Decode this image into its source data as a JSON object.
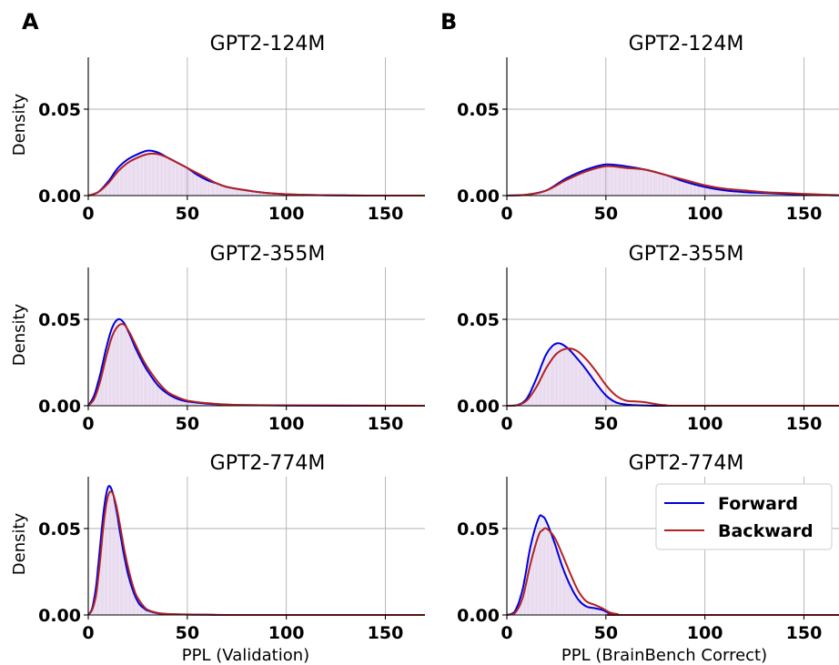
{
  "panel_letters": [
    "A",
    "B"
  ],
  "legend": [
    {
      "label": "Forward",
      "color": "#0000dd"
    },
    {
      "label": "Backward",
      "color": "#b22222"
    }
  ],
  "chart_data": [
    {
      "type": "area",
      "panel": "A",
      "title": "GPT2-124M",
      "ylabel": "Density",
      "xlabel": "",
      "xlim": [
        0,
        170
      ],
      "ylim": [
        0,
        0.08
      ],
      "xticks": [
        "0",
        "50",
        "100",
        "150"
      ],
      "yticks": [
        "0.00",
        "0.05"
      ],
      "grid": true,
      "series": [
        {
          "name": "Forward",
          "x": [
            0,
            5,
            10,
            15,
            20,
            25,
            30,
            35,
            40,
            45,
            50,
            55,
            60,
            65,
            70,
            80,
            90,
            100,
            110,
            120,
            130,
            140,
            150,
            160,
            170
          ],
          "y": [
            0,
            0.002,
            0.008,
            0.016,
            0.021,
            0.024,
            0.026,
            0.025,
            0.022,
            0.019,
            0.016,
            0.012,
            0.009,
            0.007,
            0.005,
            0.003,
            0.0015,
            0.0008,
            0.0004,
            0.0002,
            0.0001,
            0,
            0,
            0,
            0
          ]
        },
        {
          "name": "Backward",
          "x": [
            0,
            5,
            10,
            15,
            20,
            25,
            30,
            35,
            40,
            45,
            50,
            55,
            60,
            65,
            70,
            80,
            90,
            100,
            110,
            120,
            130,
            140,
            150,
            160,
            170
          ],
          "y": [
            0,
            0.002,
            0.007,
            0.014,
            0.019,
            0.022,
            0.024,
            0.024,
            0.022,
            0.019,
            0.016,
            0.013,
            0.01,
            0.007,
            0.005,
            0.003,
            0.0015,
            0.0008,
            0.0004,
            0.0002,
            0.0001,
            0,
            0,
            0,
            0
          ]
        }
      ]
    },
    {
      "type": "area",
      "panel": "B",
      "title": "GPT2-124M",
      "ylabel": "",
      "xlabel": "",
      "xlim": [
        0,
        170
      ],
      "ylim": [
        0,
        0.08
      ],
      "xticks": [
        "0",
        "50",
        "100",
        "150"
      ],
      "yticks": [
        "0.00",
        "0.05"
      ],
      "grid": true,
      "series": [
        {
          "name": "Forward",
          "x": [
            0,
            10,
            20,
            30,
            40,
            50,
            60,
            70,
            80,
            90,
            100,
            110,
            120,
            130,
            140,
            150,
            160,
            170
          ],
          "y": [
            0,
            0.0005,
            0.003,
            0.01,
            0.015,
            0.018,
            0.017,
            0.015,
            0.012,
            0.008,
            0.005,
            0.003,
            0.002,
            0.0015,
            0.001,
            0.0005,
            0.0003,
            0.0001
          ]
        },
        {
          "name": "Backward",
          "x": [
            0,
            10,
            20,
            30,
            40,
            50,
            60,
            70,
            80,
            90,
            100,
            110,
            120,
            130,
            140,
            150,
            160,
            170
          ],
          "y": [
            0,
            0.0005,
            0.003,
            0.009,
            0.014,
            0.017,
            0.016,
            0.015,
            0.012,
            0.009,
            0.006,
            0.004,
            0.003,
            0.002,
            0.0015,
            0.001,
            0.0005,
            0.0002
          ]
        }
      ]
    },
    {
      "type": "area",
      "panel": "A",
      "title": "GPT2-355M",
      "ylabel": "Density",
      "xlabel": "",
      "xlim": [
        0,
        170
      ],
      "ylim": [
        0,
        0.08
      ],
      "xticks": [
        "0",
        "50",
        "100",
        "150"
      ],
      "yticks": [
        "0.00",
        "0.05"
      ],
      "grid": true,
      "series": [
        {
          "name": "Forward",
          "x": [
            0,
            3,
            6,
            9,
            12,
            15,
            18,
            21,
            24,
            27,
            30,
            35,
            40,
            45,
            50,
            60,
            70,
            80,
            100,
            130,
            170
          ],
          "y": [
            0,
            0.006,
            0.018,
            0.033,
            0.045,
            0.05,
            0.048,
            0.041,
            0.033,
            0.026,
            0.02,
            0.012,
            0.007,
            0.004,
            0.0025,
            0.0012,
            0.0006,
            0.0003,
            0.0001,
            0,
            0
          ]
        },
        {
          "name": "Backward",
          "x": [
            0,
            3,
            6,
            9,
            12,
            15,
            18,
            21,
            24,
            27,
            30,
            35,
            40,
            45,
            50,
            60,
            70,
            80,
            100,
            130,
            170
          ],
          "y": [
            0,
            0.004,
            0.014,
            0.028,
            0.04,
            0.046,
            0.047,
            0.042,
            0.035,
            0.028,
            0.022,
            0.014,
            0.008,
            0.005,
            0.003,
            0.0015,
            0.0007,
            0.0004,
            0.0002,
            0.0001,
            0
          ]
        }
      ]
    },
    {
      "type": "area",
      "panel": "B",
      "title": "GPT2-355M",
      "ylabel": "",
      "xlabel": "",
      "xlim": [
        0,
        170
      ],
      "ylim": [
        0,
        0.08
      ],
      "xticks": [
        "0",
        "50",
        "100",
        "150"
      ],
      "yticks": [
        "0.00",
        "0.05"
      ],
      "grid": true,
      "series": [
        {
          "name": "Forward",
          "x": [
            0,
            5,
            10,
            15,
            20,
            25,
            30,
            35,
            40,
            45,
            50,
            55,
            60,
            65,
            70,
            75,
            80,
            90,
            170
          ],
          "y": [
            0,
            0.0003,
            0.004,
            0.016,
            0.03,
            0.036,
            0.034,
            0.028,
            0.021,
            0.013,
            0.006,
            0.002,
            0.0007,
            0.0003,
            0.0001,
            0,
            0,
            0,
            0
          ]
        },
        {
          "name": "Backward",
          "x": [
            0,
            5,
            10,
            15,
            20,
            25,
            30,
            35,
            40,
            45,
            50,
            55,
            60,
            65,
            70,
            75,
            80,
            90,
            170
          ],
          "y": [
            0,
            0.0002,
            0.003,
            0.011,
            0.022,
            0.03,
            0.033,
            0.032,
            0.027,
            0.02,
            0.012,
            0.006,
            0.003,
            0.0025,
            0.002,
            0.001,
            0.0003,
            0,
            0
          ]
        }
      ]
    },
    {
      "type": "area",
      "panel": "A",
      "title": "GPT2-774M",
      "ylabel": "Density",
      "xlabel": "PPL (Validation)",
      "xlim": [
        0,
        170
      ],
      "ylim": [
        0,
        0.08
      ],
      "xticks": [
        "0",
        "50",
        "100",
        "150"
      ],
      "yticks": [
        "0.00",
        "0.05"
      ],
      "grid": true,
      "series": [
        {
          "name": "Forward",
          "x": [
            0,
            2,
            4,
            6,
            8,
            10,
            12,
            14,
            16,
            18,
            20,
            22,
            24,
            26,
            28,
            30,
            35,
            40,
            50,
            60,
            80,
            170
          ],
          "y": [
            0,
            0.004,
            0.017,
            0.04,
            0.062,
            0.074,
            0.072,
            0.062,
            0.048,
            0.035,
            0.024,
            0.016,
            0.01,
            0.006,
            0.004,
            0.0025,
            0.001,
            0.0005,
            0.0002,
            0.0001,
            0,
            0
          ]
        },
        {
          "name": "Backward",
          "x": [
            0,
            2,
            4,
            6,
            8,
            10,
            12,
            14,
            16,
            18,
            20,
            22,
            24,
            26,
            28,
            30,
            35,
            40,
            50,
            60,
            80,
            170
          ],
          "y": [
            0,
            0.003,
            0.012,
            0.032,
            0.055,
            0.069,
            0.071,
            0.064,
            0.052,
            0.039,
            0.028,
            0.019,
            0.012,
            0.008,
            0.005,
            0.003,
            0.0012,
            0.0006,
            0.0003,
            0.0002,
            0,
            0
          ]
        }
      ]
    },
    {
      "type": "area",
      "panel": "B",
      "title": "GPT2-774M",
      "ylabel": "",
      "xlabel": "PPL (BrainBench Correct)",
      "xlim": [
        0,
        170
      ],
      "ylim": [
        0,
        0.08
      ],
      "xticks": [
        "0",
        "50",
        "100",
        "150"
      ],
      "yticks": [
        "0.00",
        "0.05"
      ],
      "grid": true,
      "series": [
        {
          "name": "Forward",
          "x": [
            0,
            4,
            8,
            12,
            16,
            18,
            20,
            24,
            28,
            32,
            36,
            40,
            44,
            48,
            52,
            56,
            60,
            170
          ],
          "y": [
            0,
            0.002,
            0.015,
            0.04,
            0.056,
            0.057,
            0.054,
            0.042,
            0.028,
            0.017,
            0.009,
            0.005,
            0.004,
            0.003,
            0.001,
            0.0003,
            0,
            0
          ]
        },
        {
          "name": "Backward",
          "x": [
            0,
            4,
            8,
            12,
            16,
            18,
            20,
            24,
            28,
            32,
            36,
            40,
            44,
            48,
            52,
            56,
            60,
            170
          ],
          "y": [
            0,
            0.001,
            0.01,
            0.03,
            0.046,
            0.049,
            0.05,
            0.045,
            0.035,
            0.024,
            0.014,
            0.008,
            0.006,
            0.004,
            0.0015,
            0.0005,
            0,
            0
          ]
        }
      ]
    }
  ]
}
